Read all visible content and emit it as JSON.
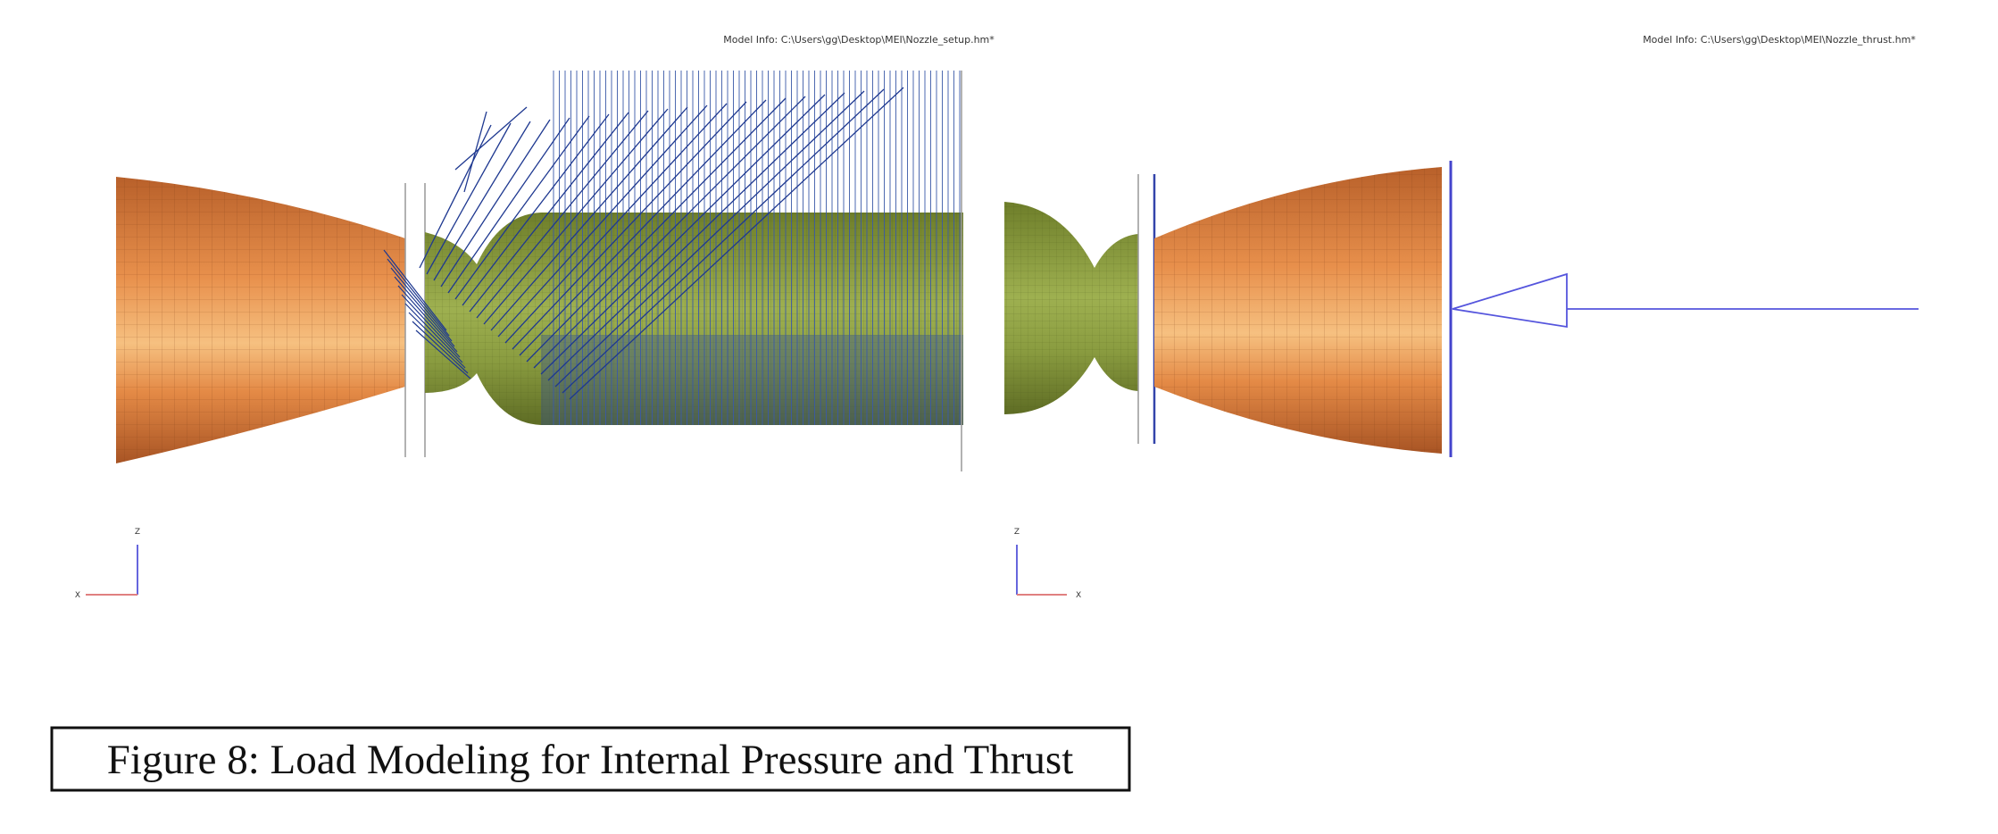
{
  "header": {
    "left": "Model Info: C:\\Users\\gg\\Desktop\\MEI\\Nozzle_setup.hm*",
    "right": "Model Info: C:\\Users\\gg\\Desktop\\MEI\\Nozzle_thrust.hm*"
  },
  "triads": [
    {
      "z": "Z",
      "x": "X"
    },
    {
      "z": "Z",
      "x": "X"
    }
  ],
  "caption": "Figure 8: Load Modeling for Internal Pressure and Thrust"
}
